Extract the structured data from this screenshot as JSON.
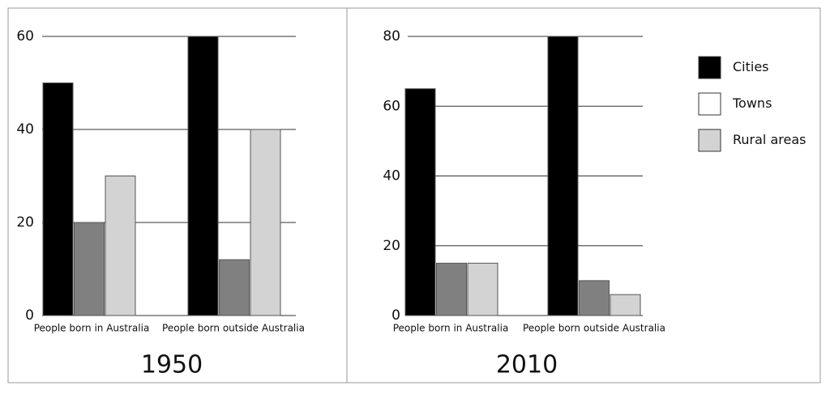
{
  "chart_data": [
    {
      "type": "bar",
      "title": "1950",
      "categories": [
        "People born in Australia",
        "People born outside Australia"
      ],
      "series": [
        {
          "name": "Cities",
          "color": "#000000",
          "values": [
            50,
            60
          ]
        },
        {
          "name": "Towns",
          "color": "#808080",
          "values": [
            20,
            12
          ]
        },
        {
          "name": "Rural areas",
          "color": "#d3d3d3",
          "values": [
            30,
            40
          ]
        }
      ],
      "ylim": [
        0,
        60
      ],
      "yticks": [
        0,
        20,
        40,
        60
      ],
      "grid": true
    },
    {
      "type": "bar",
      "title": "2010",
      "categories": [
        "People born in Australia",
        "People born outside Australia"
      ],
      "series": [
        {
          "name": "Cities",
          "color": "#000000",
          "values": [
            65,
            80
          ]
        },
        {
          "name": "Towns",
          "color": "#808080",
          "values": [
            15,
            10
          ]
        },
        {
          "name": "Rural areas",
          "color": "#d3d3d3",
          "values": [
            15,
            6
          ]
        }
      ],
      "ylim": [
        0,
        80
      ],
      "yticks": [
        0,
        20,
        40,
        60,
        80
      ],
      "grid": true,
      "legend": "right"
    }
  ]
}
